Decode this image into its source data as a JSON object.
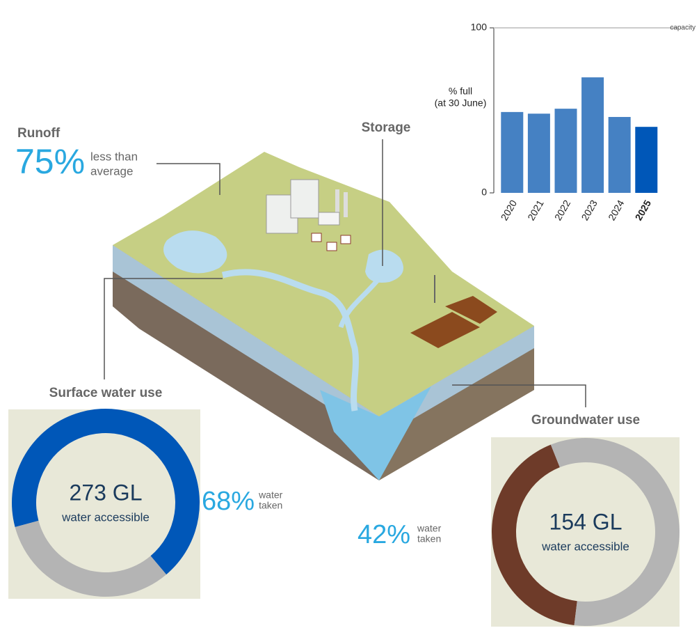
{
  "chart_data": [
    {
      "type": "bar",
      "ylabel": [
        "% full",
        "(at 30 June)"
      ],
      "annotation": "capacity",
      "categories": [
        "2020",
        "2021",
        "2022",
        "2023",
        "2024",
        "2025"
      ],
      "values": [
        49,
        48,
        51,
        70,
        46,
        40
      ],
      "colors": [
        "#4581c3",
        "#4581c3",
        "#4581c3",
        "#4581c3",
        "#4581c3",
        "#0057b8"
      ],
      "highlight": "2025",
      "ylim": [
        0,
        100
      ],
      "yticks": [
        0,
        100
      ],
      "grid": true
    },
    {
      "type": "donut",
      "title": "Surface water use",
      "center_label": [
        "273 GL",
        "water accessible"
      ],
      "values": [
        68,
        32
      ],
      "value_labels": [
        "68%",
        null
      ],
      "note": [
        "water",
        "taken"
      ],
      "colors": [
        "#0057b8",
        "#b4b4b4"
      ],
      "start_angle": 255
    },
    {
      "type": "donut",
      "title": "Groundwater use",
      "center_label": [
        "154 GL",
        "water accessible"
      ],
      "values": [
        42,
        58
      ],
      "value_labels": [
        "42%",
        null
      ],
      "note": [
        "water",
        "taken"
      ],
      "colors": [
        "#6e3b29",
        "#b4b4b4"
      ],
      "start_angle": 187
    }
  ],
  "annotations": {
    "runoff": {
      "title": "Runoff",
      "value": "75%",
      "note": [
        "less than",
        "average"
      ]
    },
    "storage": {
      "title": "Storage"
    }
  }
}
